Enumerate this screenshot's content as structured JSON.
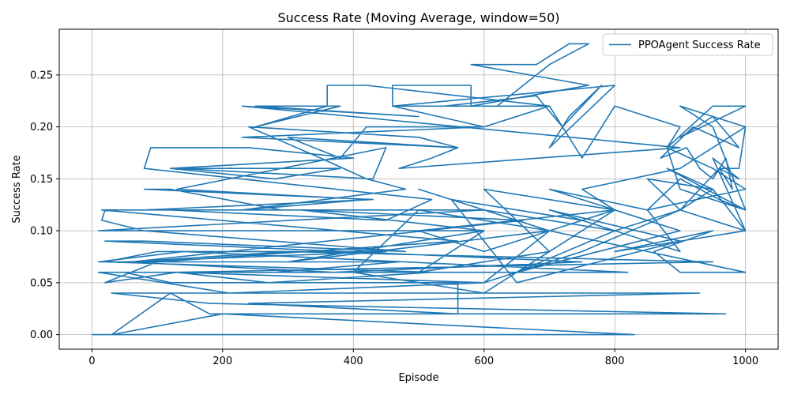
{
  "chart_data": {
    "type": "line",
    "title": "Success Rate (Moving Average, window=50)",
    "xlabel": "Episode",
    "ylabel": "Success Rate",
    "xlim": [
      -50,
      1050
    ],
    "ylim": [
      -0.014,
      0.294
    ],
    "xticks": [
      0,
      200,
      400,
      600,
      800,
      1000
    ],
    "xtick_labels": [
      "0",
      "200",
      "400",
      "600",
      "800",
      "1000"
    ],
    "yticks": [
      0.0,
      0.05,
      0.1,
      0.15,
      0.2,
      0.25
    ],
    "ytick_labels": [
      "0.00",
      "0.05",
      "0.10",
      "0.15",
      "0.20",
      "0.25"
    ],
    "grid": true,
    "legend_position": "upper right",
    "colors": {
      "series": "#1f77b4",
      "grid": "#b0b0b0",
      "axes": "#000000"
    },
    "series": [
      {
        "name": "PPOAgent Success Rate",
        "x": [
          0,
          830,
          200,
          30,
          120,
          180,
          970,
          180,
          30,
          580,
          930,
          240,
          560,
          560,
          120,
          50,
          280,
          470,
          10,
          140,
          820,
          10,
          210,
          600,
          130,
          270,
          520,
          20,
          100,
          450,
          50,
          370,
          750,
          20,
          80,
          480,
          80,
          15,
          20,
          600,
          10,
          600,
          320,
          660,
          60,
          300,
          950,
          130,
          20,
          100,
          560,
          15,
          80,
          430,
          80,
          120,
          290,
          120,
          450,
          520,
          80,
          90,
          240,
          400,
          120,
          280,
          380,
          130,
          430,
          450,
          130,
          420,
          230,
          480,
          420,
          350,
          240,
          500,
          560,
          300,
          380,
          420,
          600,
          230,
          560,
          520,
          470,
          900,
          230,
          500,
          250,
          250,
          380,
          250,
          360,
          360,
          420,
          700,
          460,
          460,
          580,
          580,
          760,
          580,
          680,
          730,
          760,
          700,
          620,
          540,
          680,
          720,
          780,
          730,
          700,
          800,
          460,
          600,
          700,
          750,
          800,
          850,
          900,
          880,
          950,
          1000,
          900,
          950,
          990,
          920,
          870,
          910,
          930,
          950,
          970,
          980,
          960,
          990,
          1000,
          900,
          950,
          1000,
          900,
          880,
          950,
          1000,
          850,
          900,
          960,
          1000,
          880,
          950,
          1000,
          950,
          990,
          960,
          900,
          950,
          850,
          900,
          1000,
          800,
          950,
          860,
          900,
          1000,
          700,
          800,
          600,
          700,
          650,
          800,
          900,
          750,
          600,
          700,
          500,
          400,
          600,
          700,
          500,
          600,
          300,
          700,
          500,
          600,
          800,
          700,
          900,
          650,
          550,
          750,
          900,
          850,
          700,
          900,
          650,
          800,
          700,
          600,
          500,
          800,
          750,
          900,
          1000
        ],
        "y": [
          0.0,
          0.0,
          0.02,
          0.0,
          0.04,
          0.02,
          0.02,
          0.03,
          0.04,
          0.04,
          0.04,
          0.03,
          0.02,
          0.05,
          0.05,
          0.06,
          0.06,
          0.07,
          0.07,
          0.08,
          0.06,
          0.06,
          0.04,
          0.05,
          0.06,
          0.05,
          0.06,
          0.07,
          0.08,
          0.08,
          0.07,
          0.06,
          0.07,
          0.09,
          0.09,
          0.08,
          0.1,
          0.11,
          0.12,
          0.12,
          0.1,
          0.1,
          0.12,
          0.11,
          0.07,
          0.08,
          0.07,
          0.06,
          0.05,
          0.07,
          0.09,
          0.12,
          0.12,
          0.13,
          0.14,
          0.14,
          0.12,
          0.12,
          0.11,
          0.13,
          0.16,
          0.18,
          0.18,
          0.17,
          0.16,
          0.15,
          0.16,
          0.16,
          0.15,
          0.18,
          0.14,
          0.13,
          0.12,
          0.14,
          0.15,
          0.17,
          0.2,
          0.19,
          0.18,
          0.19,
          0.17,
          0.2,
          0.2,
          0.19,
          0.18,
          0.17,
          0.16,
          0.18,
          0.22,
          0.21,
          0.22,
          0.22,
          0.22,
          0.2,
          0.22,
          0.24,
          0.24,
          0.22,
          0.22,
          0.24,
          0.24,
          0.22,
          0.24,
          0.26,
          0.26,
          0.28,
          0.28,
          0.26,
          0.22,
          0.22,
          0.23,
          0.2,
          0.24,
          0.21,
          0.18,
          0.24,
          0.22,
          0.2,
          0.22,
          0.17,
          0.22,
          0.21,
          0.2,
          0.18,
          0.22,
          0.22,
          0.19,
          0.21,
          0.18,
          0.2,
          0.17,
          0.18,
          0.16,
          0.15,
          0.17,
          0.14,
          0.16,
          0.16,
          0.2,
          0.22,
          0.2,
          0.12,
          0.14,
          0.18,
          0.16,
          0.14,
          0.12,
          0.15,
          0.13,
          0.12,
          0.16,
          0.14,
          0.1,
          0.17,
          0.15,
          0.16,
          0.12,
          0.14,
          0.15,
          0.12,
          0.1,
          0.08,
          0.1,
          0.08,
          0.06,
          0.06,
          0.1,
          0.12,
          0.14,
          0.08,
          0.06,
          0.1,
          0.12,
          0.08,
          0.05,
          0.1,
          0.12,
          0.06,
          0.04,
          0.08,
          0.06,
          0.1,
          0.07,
          0.1,
          0.14,
          0.12,
          0.1,
          0.12,
          0.09,
          0.05,
          0.13,
          0.11,
          0.08,
          0.12,
          0.14,
          0.1,
          0.06,
          0.12,
          0.1,
          0.08,
          0.1,
          0.12,
          0.14,
          0.16,
          0.2
        ]
      }
    ]
  }
}
